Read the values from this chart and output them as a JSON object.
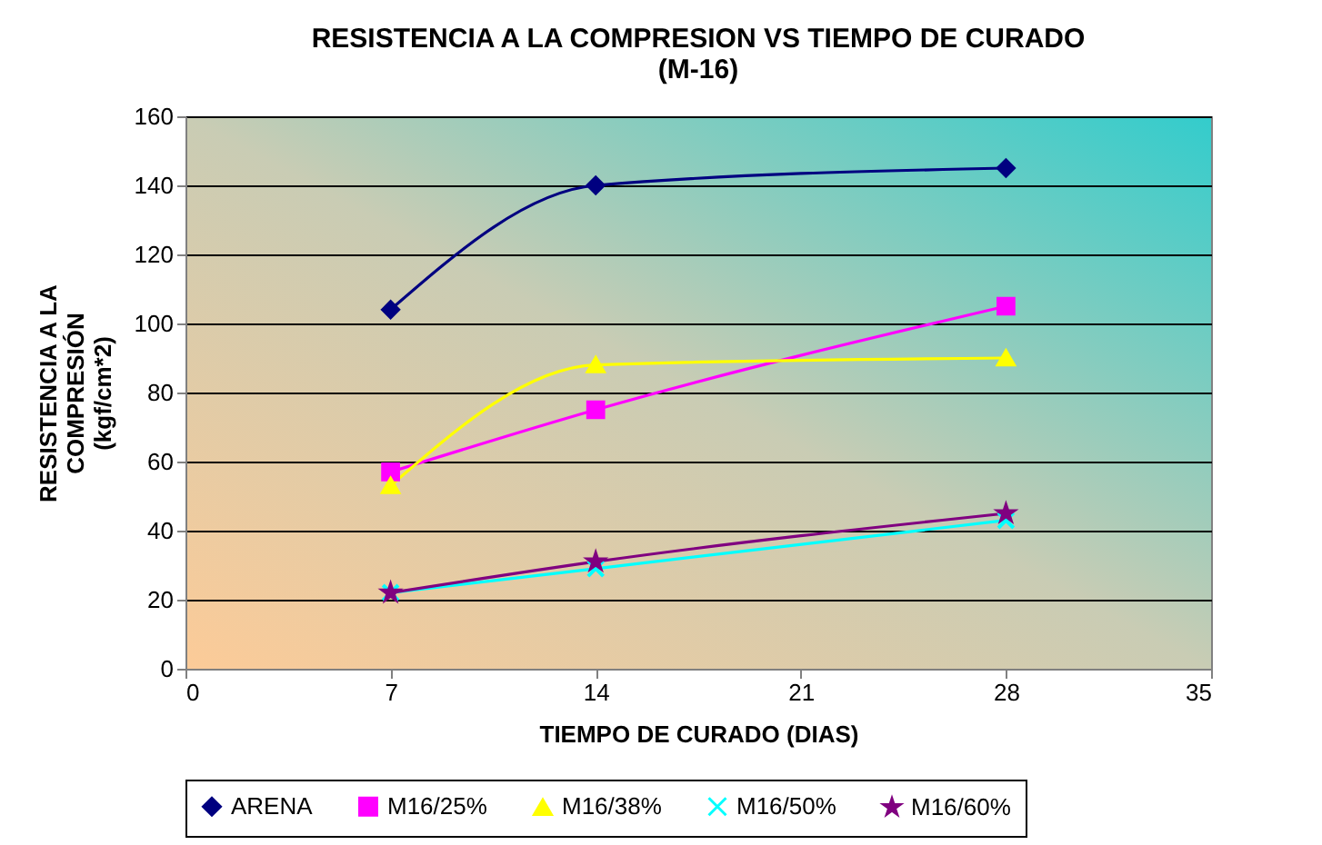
{
  "chart_data": {
    "type": "line",
    "title": "RESISTENCIA A LA COMPRESION VS TIEMPO DE CURADO\n(M-16)",
    "xlabel": "TIEMPO DE CURADO  (DIAS)",
    "ylabel": "RESISTENCIA A LA\nCOMPRESIÓN\n(kgf/cm*2)",
    "x": [
      7,
      14,
      28
    ],
    "xlim": [
      0,
      35
    ],
    "xticks": [
      0,
      7,
      14,
      21,
      28,
      35
    ],
    "ylim": [
      0,
      160
    ],
    "yticks": [
      0,
      20,
      40,
      60,
      80,
      100,
      120,
      140,
      160
    ],
    "grid": "y",
    "legend": "bottom",
    "series": [
      {
        "name": "ARENA",
        "color": "#000080",
        "marker": "diamond",
        "values": [
          104,
          140,
          145
        ]
      },
      {
        "name": "M16/25%",
        "color": "#ff00ff",
        "marker": "square",
        "values": [
          57,
          75,
          105
        ]
      },
      {
        "name": "M16/38%",
        "color": "#ffff00",
        "marker": "triangle",
        "values": [
          53,
          88,
          90
        ]
      },
      {
        "name": "M16/50%",
        "color": "#00ffff",
        "marker": "cross",
        "values": [
          22,
          29,
          43
        ]
      },
      {
        "name": "M16/60%",
        "color": "#800080",
        "marker": "star",
        "values": [
          22,
          31,
          45
        ]
      }
    ]
  }
}
